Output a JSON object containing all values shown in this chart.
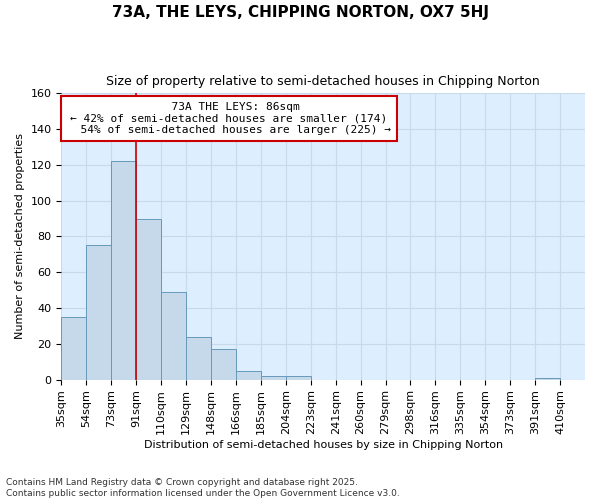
{
  "title": "73A, THE LEYS, CHIPPING NORTON, OX7 5HJ",
  "subtitle": "Size of property relative to semi-detached houses in Chipping Norton",
  "xlabel": "Distribution of semi-detached houses by size in Chipping Norton",
  "ylabel": "Number of semi-detached properties",
  "bar_labels": [
    "35sqm",
    "54sqm",
    "73sqm",
    "91sqm",
    "110sqm",
    "129sqm",
    "148sqm",
    "166sqm",
    "185sqm",
    "204sqm",
    "223sqm",
    "241sqm",
    "260sqm",
    "279sqm",
    "298sqm",
    "316sqm",
    "335sqm",
    "354sqm",
    "373sqm",
    "391sqm",
    "410sqm"
  ],
  "bar_values": [
    35,
    75,
    122,
    90,
    49,
    24,
    17,
    5,
    2,
    2,
    0,
    0,
    0,
    0,
    0,
    0,
    0,
    0,
    0,
    1,
    0
  ],
  "bar_color": "#c6d9ea",
  "bar_edge_color": "#6699bb",
  "bar_edge_width": 0.7,
  "property_label": "73A THE LEYS: 86sqm",
  "pct_smaller": 42,
  "n_smaller": 174,
  "pct_larger": 54,
  "n_larger": 225,
  "vline_bin_index": 3,
  "vline_color": "#cc0000",
  "ylim": [
    0,
    160
  ],
  "yticks": [
    0,
    20,
    40,
    60,
    80,
    100,
    120,
    140,
    160
  ],
  "annotation_box_color": "#ffffff",
  "annotation_box_edge_color": "#cc0000",
  "grid_color": "#c8daea",
  "plot_bg_color": "#ddeeff",
  "fig_bg_color": "#ffffff",
  "footer": "Contains HM Land Registry data © Crown copyright and database right 2025.\nContains public sector information licensed under the Open Government Licence v3.0.",
  "title_fontsize": 11,
  "subtitle_fontsize": 9,
  "axis_label_fontsize": 8,
  "tick_fontsize": 8,
  "footer_fontsize": 6.5,
  "ann_fontsize": 8
}
